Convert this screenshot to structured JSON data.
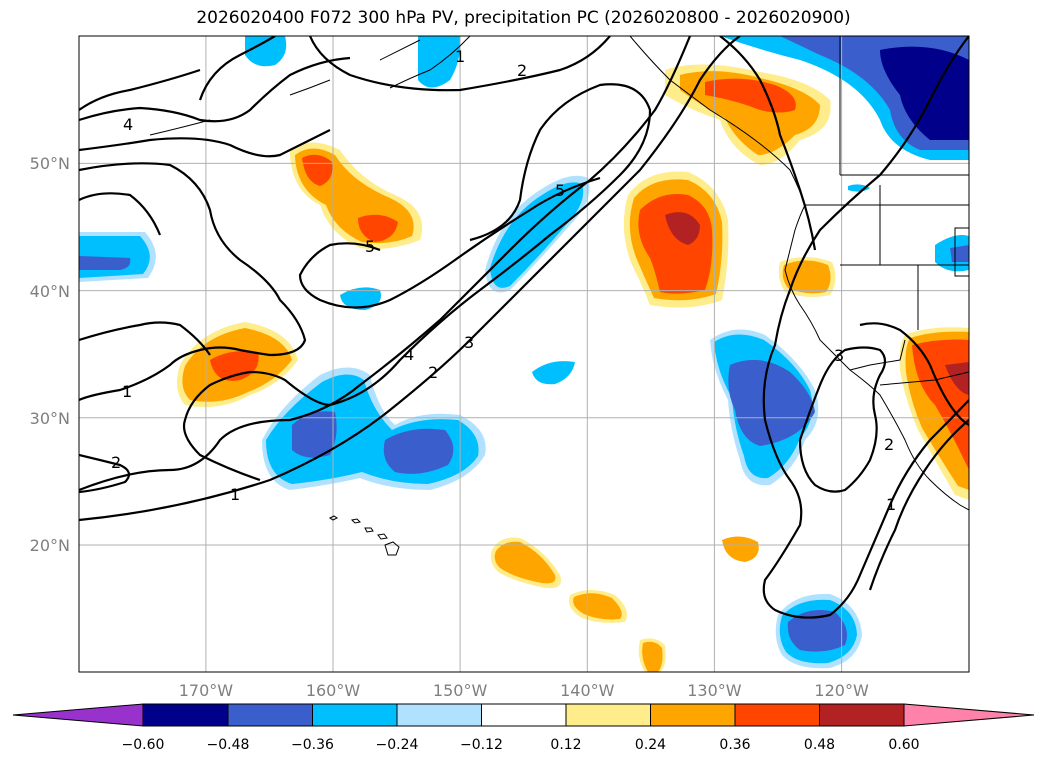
{
  "title": "2026020400 F072 300 hPa PV, precipitation PC (2026020800 - 2026020900)",
  "map": {
    "projection": "equirectangular",
    "lon_range": [
      -180,
      -110
    ],
    "lat_range": [
      10,
      60
    ],
    "lon_ticks": [
      {
        "value": -170,
        "label": "170°W"
      },
      {
        "value": -160,
        "label": "160°W"
      },
      {
        "value": -150,
        "label": "150°W"
      },
      {
        "value": -140,
        "label": "140°W"
      },
      {
        "value": -130,
        "label": "130°W"
      },
      {
        "value": -120,
        "label": "120°W"
      }
    ],
    "lat_ticks": [
      {
        "value": 20,
        "label": "20°N"
      },
      {
        "value": 30,
        "label": "30°N"
      },
      {
        "value": 40,
        "label": "40°N"
      },
      {
        "value": 50,
        "label": "50°N"
      }
    ],
    "grid": true
  },
  "contour_labels": [
    "1",
    "2",
    "3",
    "4",
    "5"
  ],
  "colorbar": {
    "colors": [
      "#9932cc",
      "#00008b",
      "#3a5fcd",
      "#00bfff",
      "#b0e2ff",
      "#ffffff",
      "#ffec8b",
      "#ffa500",
      "#ff4500",
      "#b22222",
      "#ff82ab"
    ],
    "tick_labels": [
      "−0.60",
      "−0.48",
      "−0.36",
      "−0.24",
      "−0.12",
      "0.12",
      "0.24",
      "0.36",
      "0.48",
      "0.60"
    ]
  }
}
